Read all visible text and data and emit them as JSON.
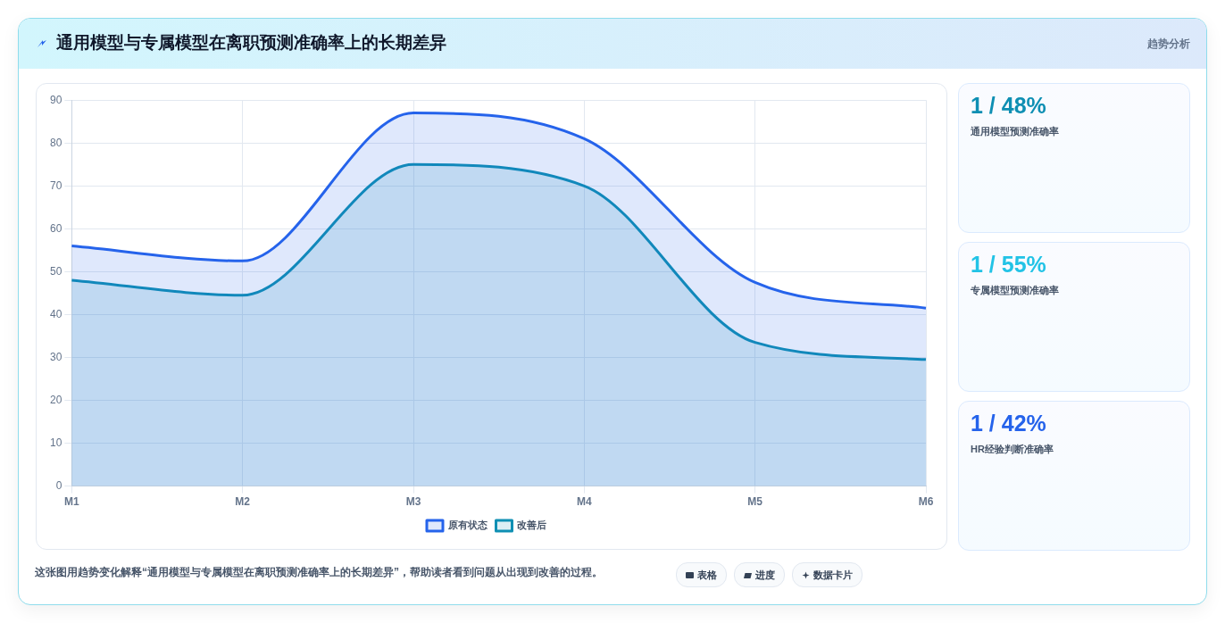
{
  "chart_data": [
    {
      "type": "area",
      "title": "通用模型与专属模型在离职预测准确率上的长期差异",
      "categories": [
        "M1",
        "M2",
        "M3",
        "M4",
        "M5",
        "M6"
      ],
      "series": [
        {
          "name": "原有状态",
          "color": "#2563eb",
          "values": [
            56,
            52.5,
            87,
            81,
            47.5,
            41.5
          ]
        },
        {
          "name": "改善后",
          "color": "#0e8fb3",
          "values": [
            48,
            44.5,
            75,
            70,
            33.5,
            29.5
          ]
        }
      ],
      "ylim": [
        0,
        90
      ],
      "yticks": [
        0,
        10,
        20,
        30,
        40,
        50,
        60,
        70,
        80,
        90
      ],
      "grid": true,
      "legend": "bottom",
      "marker": "none",
      "annotations": [
        "趋势分析",
        "这张图用趋势变化解释“通用模型与专属模型在离职预测准确率上的长期差异”，帮助读者看到问题从出现到改善的过程。",
        "表格",
        "进度",
        "数据卡片"
      ]
    },
    {
      "type": "other",
      "annotations": [
        "1 / 48%",
        "通用模型预测准确率",
        "1 / 55%",
        "专属模型预测准确率",
        "1 / 42%",
        "HR经验判断准确率"
      ],
      "colors": [
        "#0e8fb3",
        "#22c3e6",
        "#2563eb"
      ]
    }
  ]
}
